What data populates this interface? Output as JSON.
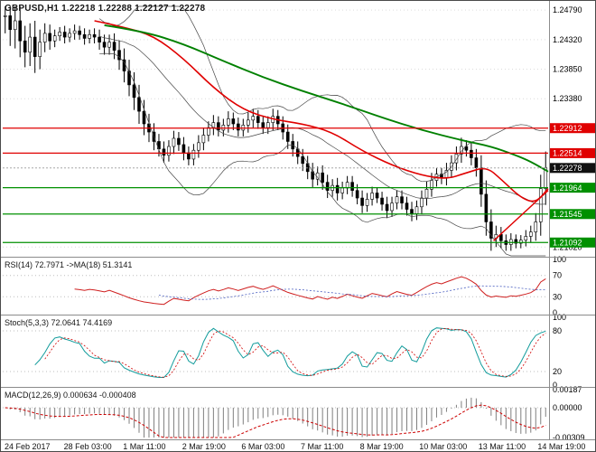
{
  "window_title": "GBPUSD,H1",
  "chart_data": {
    "type": "candlestick",
    "symbol": "GBPUSD",
    "timeframe": "H1",
    "ohlc_header": "GBPUSD,H1 1.22218 1.22288 1.22127 1.22278",
    "current_bar": {
      "open": 1.22218,
      "high": 1.22288,
      "low": 1.22127,
      "close": 1.22278
    },
    "x_labels": [
      "24 Feb 2017",
      "28 Feb 03:00",
      "1 Mar 11:00",
      "2 Mar 19:00",
      "6 Mar 03:00",
      "7 Mar 11:00",
      "8 Mar 19:00",
      "10 Mar 03:00",
      "13 Mar 11:00",
      "14 Mar 19:00"
    ],
    "price_axis": {
      "min": 1.2088,
      "max": 1.2485,
      "gridlines": [
        {
          "price": 1.2479,
          "label": "1.24790"
        },
        {
          "price": 1.2432,
          "label": "1.24320"
        },
        {
          "price": 1.2385,
          "label": "1.23850"
        },
        {
          "price": 1.2338,
          "label": "1.23380"
        },
        {
          "price": 1.2102,
          "label": "1.21020"
        }
      ]
    },
    "closes": [
      1.247,
      1.2448,
      1.2462,
      1.243,
      1.2412,
      1.2436,
      1.2405,
      1.2428,
      1.2442,
      1.243,
      1.2438,
      1.2444,
      1.2436,
      1.2442,
      1.2446,
      1.244,
      1.2434,
      1.244,
      1.2436,
      1.2428,
      1.242,
      1.2428,
      1.2415,
      1.24,
      1.2382,
      1.236,
      1.234,
      1.2318,
      1.2298,
      1.2285,
      1.227,
      1.2258,
      1.2248,
      1.2262,
      1.2275,
      1.2265,
      1.2252,
      1.2242,
      1.2256,
      1.2268,
      1.228,
      1.2292,
      1.23,
      1.2288,
      1.2296,
      1.2306,
      1.2298,
      1.2288,
      1.2296,
      1.2304,
      1.231,
      1.23,
      1.2292,
      1.23,
      1.231,
      1.2298,
      1.2285,
      1.227,
      1.2258,
      1.2246,
      1.2235,
      1.2222,
      1.221,
      1.222,
      1.2205,
      1.2192,
      1.22,
      1.2188,
      1.2196,
      1.2205,
      1.2192,
      1.218,
      1.2168,
      1.2178,
      1.2188,
      1.218,
      1.217,
      1.216,
      1.2172,
      1.2182,
      1.2172,
      1.2162,
      1.2155,
      1.2166,
      1.218,
      1.2194,
      1.2208,
      1.2218,
      1.2212,
      1.2224,
      1.2236,
      1.225,
      1.2262,
      1.2256,
      1.2244,
      1.2228,
      1.2186,
      1.2142,
      1.2116,
      1.2122,
      1.2112,
      1.2106,
      1.2114,
      1.2108,
      1.2113,
      1.2119,
      1.2126,
      1.2142,
      1.2195,
      1.2228
    ],
    "wicks": [
      0.0028,
      0.0026,
      0.003,
      0.0026,
      0.0024,
      0.0022,
      0.0026,
      0.002,
      0.0016,
      0.0014,
      0.001,
      0.0008,
      0.001,
      0.0008,
      0.001,
      0.0008,
      0.001,
      0.0008,
      0.001,
      0.0012,
      0.0012,
      0.0012,
      0.0014,
      0.0016,
      0.0018,
      0.0018,
      0.002,
      0.002,
      0.0018,
      0.0016,
      0.0014,
      0.0012,
      0.0012,
      0.001,
      0.0012,
      0.001,
      0.0012,
      0.001,
      0.001,
      0.0012,
      0.0012,
      0.001,
      0.0012,
      0.001,
      0.001,
      0.0012,
      0.001,
      0.001,
      0.001,
      0.0012,
      0.0012,
      0.001,
      0.001,
      0.001,
      0.0012,
      0.001,
      0.0012,
      0.0012,
      0.0012,
      0.0012,
      0.0012,
      0.0012,
      0.0014,
      0.001,
      0.0012,
      0.0012,
      0.001,
      0.0012,
      0.001,
      0.001,
      0.001,
      0.001,
      0.0012,
      0.001,
      0.001,
      0.0008,
      0.001,
      0.0012,
      0.001,
      0.001,
      0.001,
      0.001,
      0.0012,
      0.001,
      0.0012,
      0.0012,
      0.0012,
      0.001,
      0.001,
      0.0012,
      0.0012,
      0.0012,
      0.0014,
      0.001,
      0.0012,
      0.0014,
      0.002,
      0.0022,
      0.002,
      0.0014,
      0.0012,
      0.001,
      0.001,
      0.0008,
      0.0008,
      0.001,
      0.001,
      0.0014,
      0.0022,
      0.0026
    ],
    "ma_red": {
      "color": "#e00000",
      "points": [
        [
          18,
          1.2462
        ],
        [
          24,
          1.2452
        ],
        [
          30,
          1.2438
        ],
        [
          36,
          1.2402
        ],
        [
          42,
          1.2355
        ],
        [
          48,
          1.232
        ],
        [
          54,
          1.2305
        ],
        [
          60,
          1.2298
        ],
        [
          66,
          1.2285
        ],
        [
          72,
          1.2255
        ],
        [
          78,
          1.2232
        ],
        [
          84,
          1.2216
        ],
        [
          89,
          1.221
        ],
        [
          93,
          1.222
        ],
        [
          97,
          1.223
        ],
        [
          100,
          1.221
        ],
        [
          104,
          1.218
        ],
        [
          107,
          1.2172
        ],
        [
          110,
          1.2195
        ]
      ]
    },
    "ma_green": {
      "color": "#008000",
      "points": [
        [
          20,
          1.2455
        ],
        [
          28,
          1.2445
        ],
        [
          36,
          1.2425
        ],
        [
          44,
          1.2398
        ],
        [
          52,
          1.2372
        ],
        [
          60,
          1.235
        ],
        [
          68,
          1.233
        ],
        [
          76,
          1.2308
        ],
        [
          84,
          1.2288
        ],
        [
          92,
          1.2272
        ],
        [
          98,
          1.2262
        ],
        [
          103,
          1.2248
        ],
        [
          106,
          1.2238
        ],
        [
          110,
          1.2222
        ]
      ]
    },
    "hlines": [
      {
        "price": 1.22912,
        "label": "1.22912",
        "color": "#e00000"
      },
      {
        "price": 1.22514,
        "label": "1.22514",
        "color": "#e00000"
      },
      {
        "price": 1.21964,
        "label": "1.21964",
        "color": "#009000"
      },
      {
        "price": 1.21545,
        "label": "1.21545",
        "color": "#009000"
      },
      {
        "price": 1.21092,
        "label": "1.21092",
        "color": "#009000"
      }
    ],
    "trendline": {
      "from": [
        98.5,
        1.2112
      ],
      "to": [
        110,
        1.2192
      ],
      "color": "#e00000"
    },
    "current_price": {
      "value": 1.22278,
      "label": "1.22278",
      "badge_color": "#111111"
    },
    "indicators": {
      "rsi": {
        "label": "RSI(14) 72.7971 ->MA(18) 51.3141",
        "value": 72.7971,
        "ma_value": 51.3141,
        "levels": [
          100,
          70,
          30,
          0
        ],
        "color": "#cf1f1f",
        "ma_color": "#4a5fc0"
      },
      "stoch": {
        "label": "Stoch(5,3,3) 72.0641 74.4169",
        "k_value": 72.0641,
        "d_value": 74.4169,
        "levels": [
          100,
          80,
          20,
          0
        ],
        "color": "#129c9c",
        "signal_color": "#d00000"
      },
      "macd": {
        "label": "MACD(12,26,9) 0.000634 -0.000408",
        "value": 0.000634,
        "signal_value": -0.000408,
        "axis": [
          {
            "value": 0.00187,
            "label": "0.00187"
          },
          {
            "value": 0,
            "label": "0.00000"
          },
          {
            "value": -0.00309,
            "label": "-0.00309"
          }
        ],
        "hist_color": "#7f7f7f",
        "signal_color": "#cc0000"
      }
    },
    "bollinger": {
      "period": 20,
      "deviation": 2,
      "color": "#474747"
    }
  }
}
